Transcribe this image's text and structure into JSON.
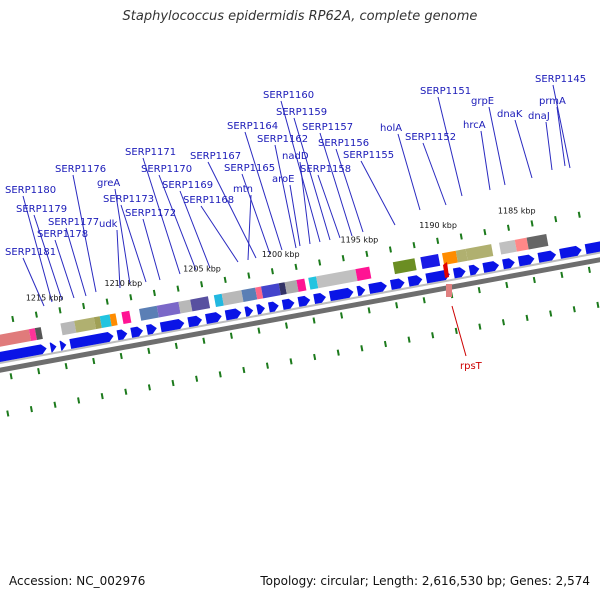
{
  "title": "Staphylococcus epidermidis RP62A, complete genome",
  "footer": {
    "accession": "Accession: NC_002976",
    "topology": "Topology: circular; Length: 2,616,530 bp; Genes: 2,574"
  },
  "colors": {
    "gene_label": "#1a1ab8",
    "forward_gene": "#0a14e6",
    "backbone": "#6e6e6e",
    "tick": "#1c7a1c",
    "rps_label": "#cc0000"
  },
  "kbp_labels": [
    "1215 kbp",
    "1210 kbp",
    "1205 kbp",
    "1200 kbp",
    "1195 kbp",
    "1190 kbp",
    "1185 kbp"
  ],
  "gene_labels": [
    "SERP1145",
    "prmA",
    "dnaJ",
    "dnaK",
    "grpE",
    "hrcA",
    "SERP1151",
    "SERP1152",
    "holA",
    "SERP1155",
    "SERP1156",
    "SERP1157",
    "SERP1158",
    "SERP1159",
    "SERP1160",
    "nadD",
    "aroE",
    "SERP1162",
    "SERP1164",
    "SERP1165",
    "SERP1167",
    "mtn",
    "SERP1168",
    "SERP1169",
    "SERP1170",
    "SERP1171",
    "SERP1172",
    "SERP1173",
    "greA",
    "udk",
    "SERP1176",
    "SERP1177",
    "SERP1178",
    "SERP1179",
    "SERP1180",
    "SERP1181"
  ],
  "reverse_gene_label": "rpsT"
}
